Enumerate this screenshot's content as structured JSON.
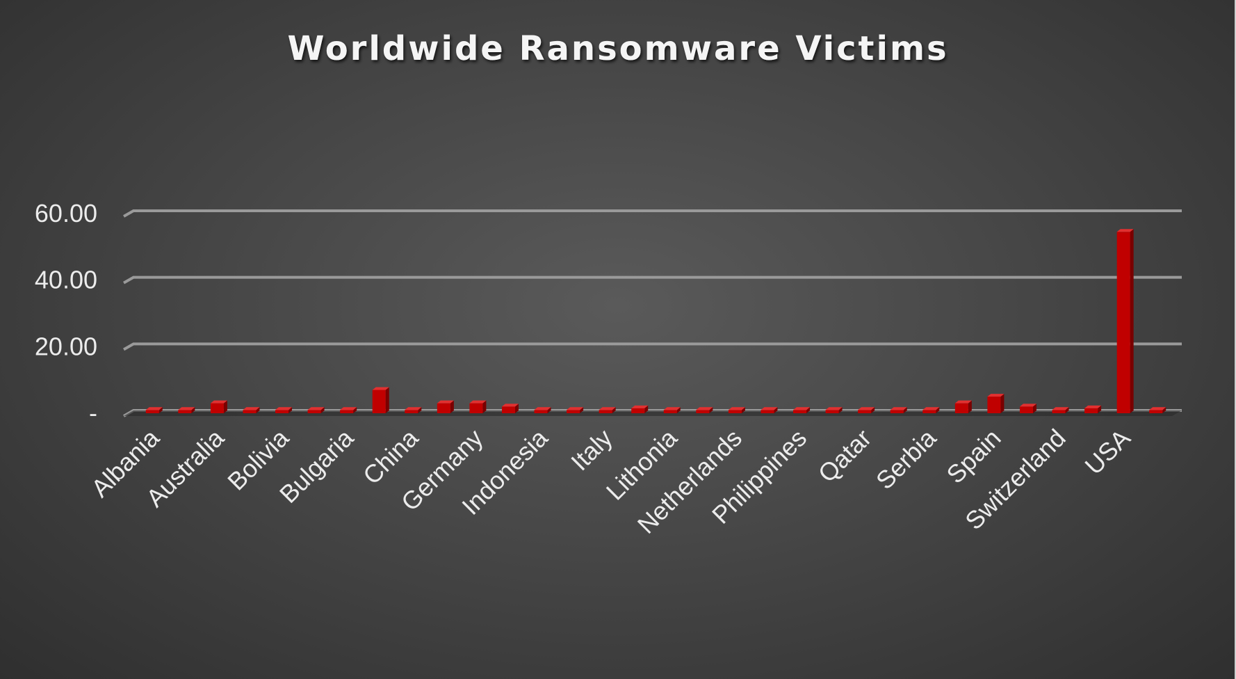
{
  "chart_data": {
    "type": "bar",
    "title": "Worldwide Ransomware Victims",
    "xlabel": "",
    "ylabel": "",
    "ylim": [
      0,
      60
    ],
    "yticks": [
      {
        "value": 0,
        "label": "-"
      },
      {
        "value": 20,
        "label": "20.00"
      },
      {
        "value": 40,
        "label": "40.00"
      },
      {
        "value": 60,
        "label": "60.00"
      }
    ],
    "grid": true,
    "legend": "none",
    "bar_color": "#c00000",
    "categories": [
      "Albania",
      "",
      "Australia",
      "",
      "Bolivia",
      "",
      "Bulgaria",
      "",
      "China",
      "",
      "Germany",
      "",
      "Indonesia",
      "",
      "Italy",
      "",
      "Lithonia",
      "",
      "Netherlands",
      "",
      "Philippines",
      "",
      "Qatar",
      "",
      "Serbia",
      "",
      "Spain",
      "",
      "Switzerland",
      "",
      "USA",
      ""
    ],
    "values": [
      1,
      1,
      3,
      1,
      1,
      1,
      1,
      7,
      1,
      3,
      3,
      2,
      1,
      1,
      1,
      1.5,
      1,
      1,
      1,
      1,
      1,
      1,
      1,
      1,
      1,
      3,
      5,
      2,
      1,
      1.5,
      54.5,
      1
    ]
  }
}
